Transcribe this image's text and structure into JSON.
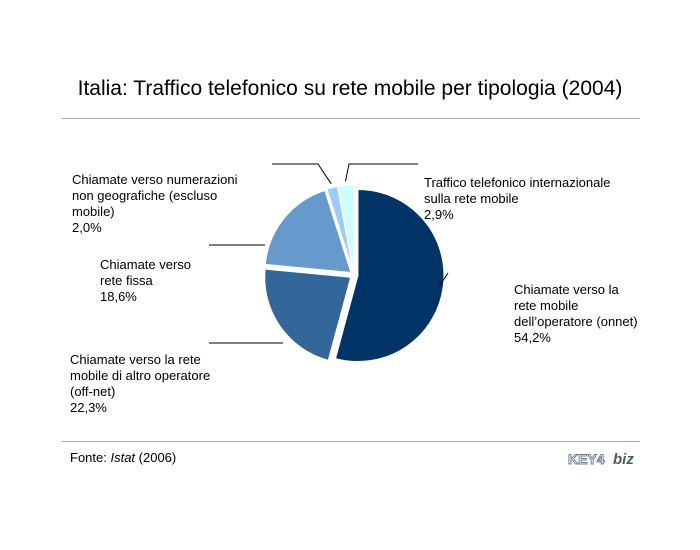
{
  "chart_data": {
    "type": "pie",
    "title": "Italia: Traffico telefonico su rete mobile per tipologia (2004)",
    "slices": [
      {
        "label": "Chiamate verso la\nrete mobile\ndell’operatore (onnet)",
        "value_text": "54,2%",
        "value": 54.2,
        "color": "#003366"
      },
      {
        "label": "Chiamate verso la rete\nmobile di altro operatore\n(off-net)",
        "value_text": "22,3%",
        "value": 22.3,
        "color": "#336699"
      },
      {
        "label": "Chiamate verso\nrete fissa",
        "value_text": "18,6%",
        "value": 18.6,
        "color": "#6699cc"
      },
      {
        "label": "Chiamate verso numerazioni\nnon geografiche (escluso\nmobile)",
        "value_text": "2,0%",
        "value": 2.0,
        "color": "#99ccff"
      },
      {
        "label": "Traffico telefonico internazionale\nsulla rete mobile",
        "value_text": "2,9%",
        "value": 2.9,
        "color": "#ccffff"
      }
    ],
    "legend": "none",
    "start_angle_deg": 0,
    "direction": "clockwise"
  },
  "footer": {
    "source_prefix": "Fonte: ",
    "source_name": "Istat",
    "source_suffix": " (2006)",
    "logo_text_left": "KEY4",
    "logo_text_right": "biz"
  }
}
